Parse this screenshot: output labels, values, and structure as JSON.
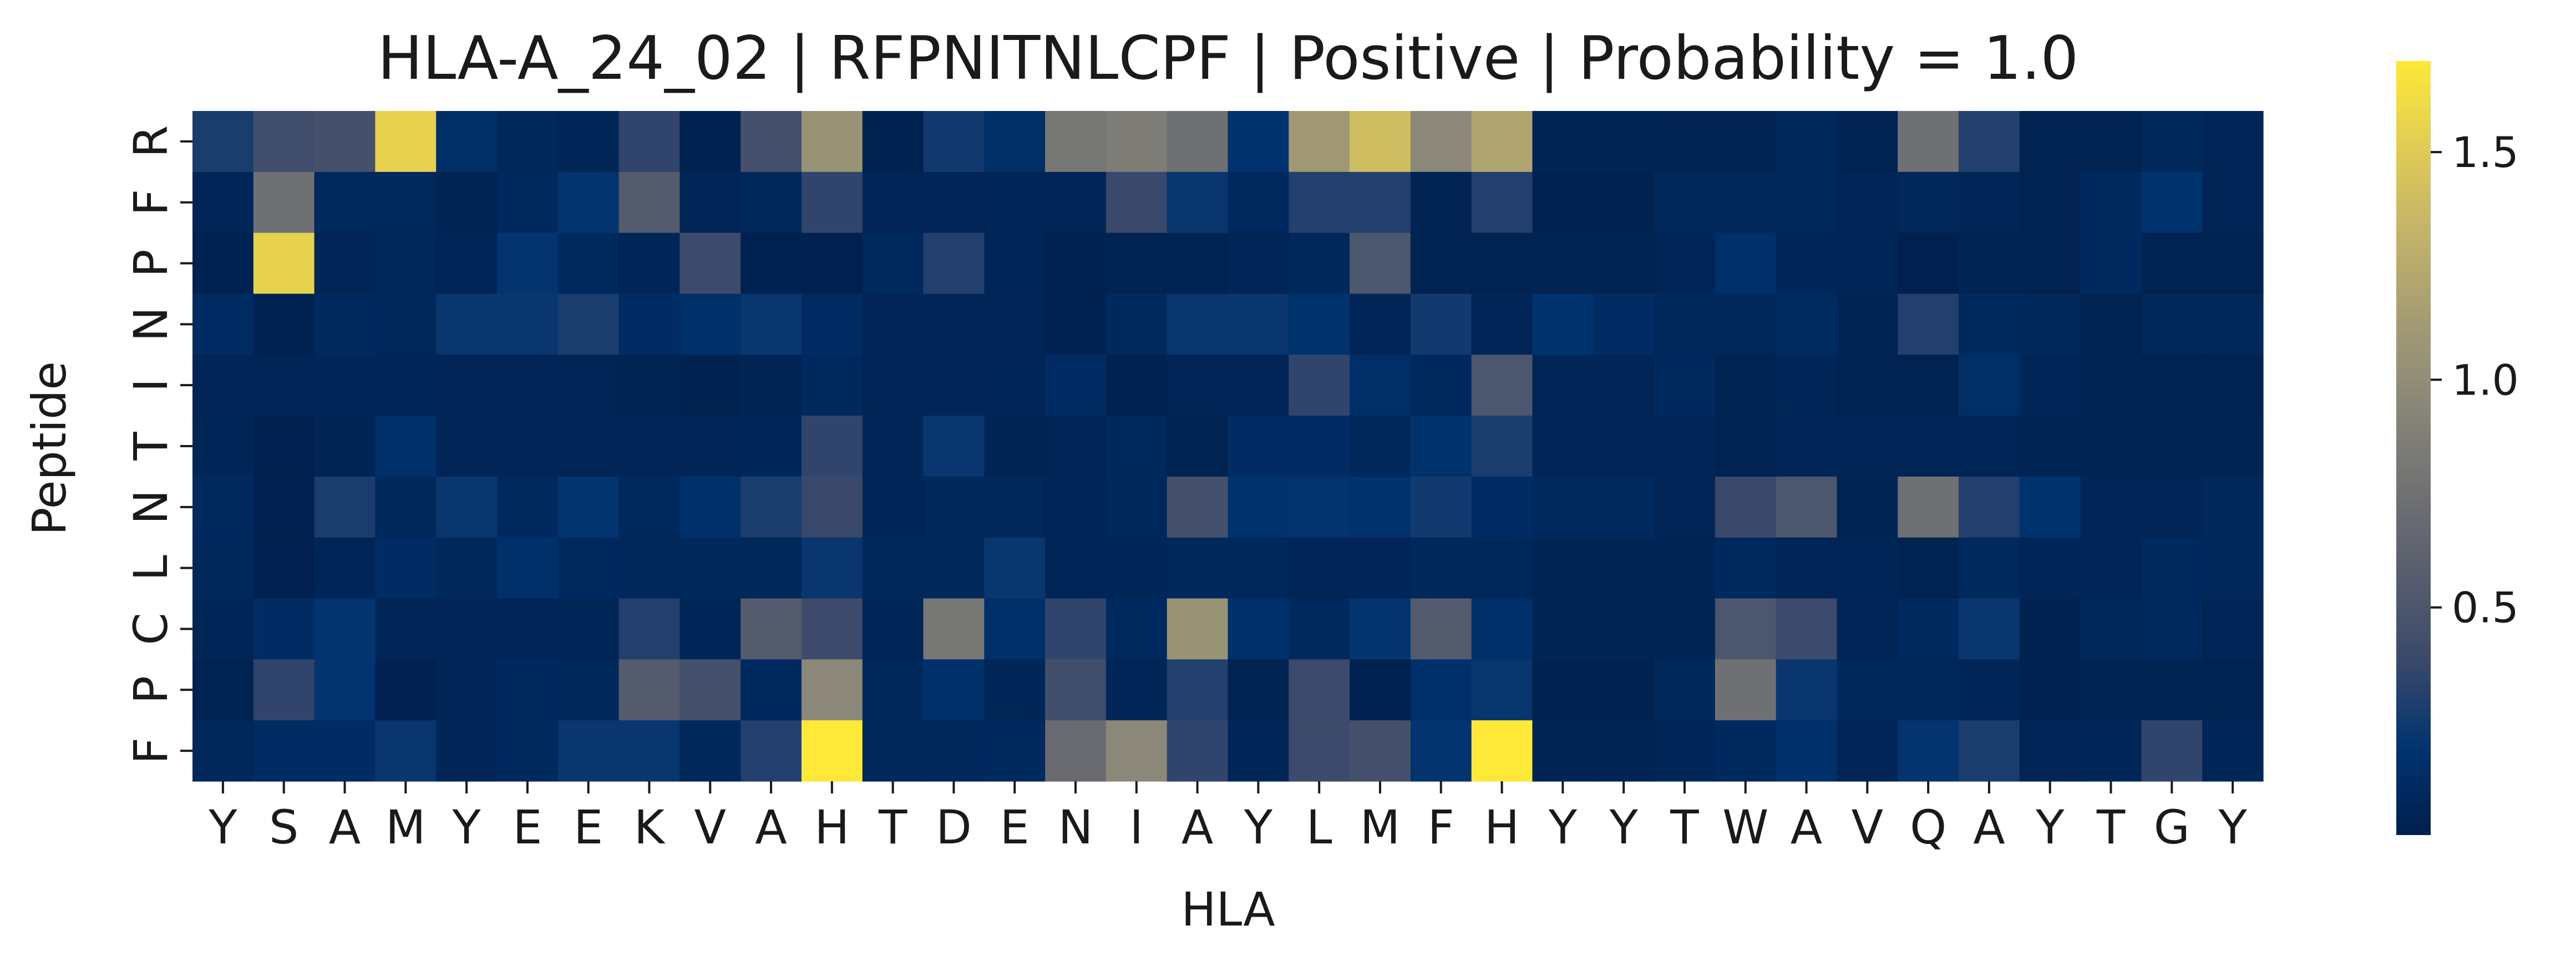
{
  "chart_data": {
    "type": "heatmap",
    "title": "HLA-A_24_02 | RFPNITNLCPF | Positive | Probability = 1.0",
    "xlabel": "HLA",
    "ylabel": "Peptide",
    "x_categories": [
      "Y",
      "S",
      "A",
      "M",
      "Y",
      "E",
      "E",
      "K",
      "V",
      "A",
      "H",
      "T",
      "D",
      "E",
      "N",
      "I",
      "A",
      "Y",
      "L",
      "M",
      "F",
      "H",
      "Y",
      "Y",
      "T",
      "W",
      "A",
      "V",
      "Q",
      "A",
      "Y",
      "T",
      "G",
      "Y"
    ],
    "y_categories": [
      "R",
      "F",
      "P",
      "N",
      "I",
      "T",
      "N",
      "L",
      "C",
      "P",
      "F"
    ],
    "values": [
      [
        0.28,
        0.42,
        0.45,
        1.55,
        0.14,
        0.08,
        0.06,
        0.35,
        0.02,
        0.45,
        1.05,
        0.02,
        0.25,
        0.15,
        0.8,
        0.85,
        0.75,
        0.18,
        1.1,
        1.4,
        0.95,
        1.2,
        0.04,
        0.04,
        0.03,
        0.03,
        0.08,
        0.03,
        0.75,
        0.3,
        0.03,
        0.03,
        0.08,
        0.05
      ],
      [
        0.05,
        0.75,
        0.09,
        0.09,
        0.04,
        0.1,
        0.2,
        0.55,
        0.05,
        0.08,
        0.35,
        0.05,
        0.05,
        0.06,
        0.05,
        0.38,
        0.22,
        0.1,
        0.3,
        0.3,
        0.03,
        0.3,
        0.02,
        0.02,
        0.08,
        0.08,
        0.08,
        0.05,
        0.08,
        0.05,
        0.03,
        0.1,
        0.18,
        0.05
      ],
      [
        0.02,
        1.55,
        0.05,
        0.08,
        0.06,
        0.2,
        0.09,
        0.06,
        0.4,
        0.02,
        0.01,
        0.09,
        0.3,
        0.06,
        0.02,
        0.03,
        0.03,
        0.05,
        0.08,
        0.5,
        0.03,
        0.03,
        0.03,
        0.03,
        0.05,
        0.16,
        0.07,
        0.06,
        0.01,
        0.04,
        0.03,
        0.1,
        0.03,
        0.03
      ],
      [
        0.12,
        0.02,
        0.1,
        0.08,
        0.22,
        0.22,
        0.28,
        0.12,
        0.16,
        0.22,
        0.12,
        0.05,
        0.05,
        0.05,
        0.02,
        0.09,
        0.22,
        0.22,
        0.18,
        0.05,
        0.25,
        0.05,
        0.18,
        0.12,
        0.08,
        0.08,
        0.11,
        0.04,
        0.3,
        0.09,
        0.08,
        0.03,
        0.08,
        0.08
      ],
      [
        0.05,
        0.05,
        0.07,
        0.07,
        0.05,
        0.05,
        0.05,
        0.04,
        0.02,
        0.04,
        0.09,
        0.05,
        0.05,
        0.06,
        0.12,
        0.02,
        0.05,
        0.05,
        0.35,
        0.15,
        0.1,
        0.5,
        0.05,
        0.05,
        0.1,
        0.03,
        0.06,
        0.03,
        0.03,
        0.15,
        0.06,
        0.04,
        0.03,
        0.03
      ],
      [
        0.06,
        0.01,
        0.04,
        0.16,
        0.05,
        0.05,
        0.05,
        0.05,
        0.05,
        0.07,
        0.35,
        0.05,
        0.22,
        0.04,
        0.05,
        0.09,
        0.03,
        0.12,
        0.12,
        0.08,
        0.18,
        0.28,
        0.05,
        0.05,
        0.05,
        0.03,
        0.05,
        0.05,
        0.05,
        0.05,
        0.04,
        0.04,
        0.04,
        0.04
      ],
      [
        0.1,
        0.01,
        0.28,
        0.08,
        0.22,
        0.1,
        0.2,
        0.09,
        0.16,
        0.28,
        0.38,
        0.06,
        0.08,
        0.08,
        0.06,
        0.08,
        0.45,
        0.18,
        0.2,
        0.18,
        0.25,
        0.12,
        0.1,
        0.1,
        0.05,
        0.38,
        0.5,
        0.04,
        0.75,
        0.3,
        0.18,
        0.05,
        0.05,
        0.08
      ],
      [
        0.08,
        0.01,
        0.06,
        0.12,
        0.08,
        0.16,
        0.1,
        0.08,
        0.08,
        0.08,
        0.22,
        0.08,
        0.08,
        0.22,
        0.06,
        0.06,
        0.08,
        0.08,
        0.05,
        0.05,
        0.08,
        0.08,
        0.04,
        0.04,
        0.04,
        0.1,
        0.05,
        0.06,
        0.03,
        0.09,
        0.06,
        0.05,
        0.1,
        0.08
      ],
      [
        0.06,
        0.12,
        0.2,
        0.05,
        0.05,
        0.05,
        0.06,
        0.3,
        0.06,
        0.55,
        0.4,
        0.06,
        0.8,
        0.16,
        0.35,
        0.1,
        1.05,
        0.16,
        0.1,
        0.2,
        0.55,
        0.16,
        0.04,
        0.04,
        0.04,
        0.5,
        0.4,
        0.05,
        0.1,
        0.22,
        0.02,
        0.08,
        0.1,
        0.05
      ],
      [
        0.03,
        0.35,
        0.2,
        0.01,
        0.05,
        0.1,
        0.08,
        0.55,
        0.45,
        0.1,
        0.95,
        0.08,
        0.16,
        0.06,
        0.42,
        0.05,
        0.3,
        0.03,
        0.4,
        0.02,
        0.16,
        0.22,
        0.02,
        0.02,
        0.08,
        0.75,
        0.22,
        0.08,
        0.08,
        0.06,
        0.02,
        0.03,
        0.04,
        0.03
      ],
      [
        0.08,
        0.12,
        0.12,
        0.22,
        0.05,
        0.1,
        0.22,
        0.22,
        0.08,
        0.3,
        1.7,
        0.08,
        0.08,
        0.1,
        0.7,
        0.95,
        0.35,
        0.06,
        0.4,
        0.45,
        0.2,
        1.7,
        0.04,
        0.04,
        0.06,
        0.1,
        0.16,
        0.05,
        0.2,
        0.28,
        0.05,
        0.06,
        0.35,
        0.06
      ]
    ],
    "zlim": [
      0.0,
      1.7
    ],
    "colormap": "cividis",
    "colormap_stops": [
      "#00204d",
      "#00336f",
      "#39486b",
      "#575d6d",
      "#707173",
      "#8a8779",
      "#a59c74",
      "#c3b369",
      "#e1cc55",
      "#fee838"
    ],
    "colorbar_ticks": [
      0.5,
      1.0,
      1.5
    ],
    "colorbar_tick_labels": [
      "0.5",
      "1.0",
      "1.5"
    ],
    "grid": false,
    "legend": "none"
  }
}
